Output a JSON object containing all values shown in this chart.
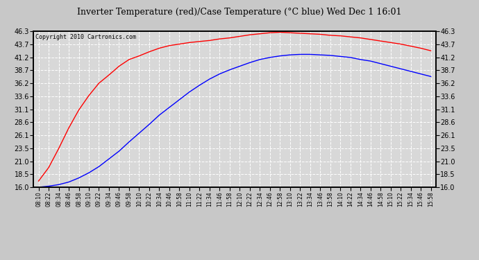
{
  "title": "Inverter Temperature (red)/Case Temperature (°C blue) Wed Dec 1 16:01",
  "copyright": "Copyright 2010 Cartronics.com",
  "yticks": [
    16.0,
    18.5,
    21.0,
    23.5,
    26.1,
    28.6,
    31.1,
    33.6,
    36.2,
    38.7,
    41.2,
    43.7,
    46.3
  ],
  "ymin": 16.0,
  "ymax": 46.3,
  "background_color": "#c8c8c8",
  "plot_bg_color": "#d8d8d8",
  "grid_color": "#ffffff",
  "red_color": "#ff0000",
  "blue_color": "#0000ff",
  "xtick_labels": [
    "08:10",
    "08:22",
    "08:34",
    "08:46",
    "08:58",
    "09:10",
    "09:22",
    "09:34",
    "09:46",
    "09:58",
    "10:10",
    "10:22",
    "10:34",
    "10:46",
    "10:58",
    "11:10",
    "11:22",
    "11:34",
    "11:46",
    "11:58",
    "12:10",
    "12:22",
    "12:34",
    "12:46",
    "12:58",
    "13:10",
    "13:22",
    "13:34",
    "13:46",
    "13:58",
    "14:10",
    "14:22",
    "14:34",
    "14:46",
    "14:58",
    "15:10",
    "15:22",
    "15:34",
    "15:46",
    "15:58"
  ],
  "red_data": [
    17.2,
    19.8,
    23.5,
    27.5,
    31.0,
    33.8,
    36.2,
    37.8,
    39.5,
    40.8,
    41.5,
    42.3,
    43.0,
    43.5,
    43.8,
    44.1,
    44.3,
    44.5,
    44.8,
    45.0,
    45.3,
    45.6,
    45.8,
    46.0,
    46.1,
    46.0,
    45.9,
    45.8,
    45.7,
    45.5,
    45.4,
    45.2,
    45.0,
    44.7,
    44.4,
    44.1,
    43.8,
    43.4,
    43.0,
    42.5
  ],
  "blue_data": [
    16.0,
    16.2,
    16.5,
    17.0,
    17.8,
    18.8,
    20.0,
    21.5,
    23.0,
    24.8,
    26.5,
    28.2,
    30.0,
    31.5,
    33.0,
    34.5,
    35.8,
    37.0,
    38.0,
    38.8,
    39.5,
    40.2,
    40.8,
    41.2,
    41.5,
    41.7,
    41.8,
    41.8,
    41.7,
    41.6,
    41.4,
    41.2,
    40.8,
    40.5,
    40.0,
    39.5,
    39.0,
    38.5,
    38.0,
    37.5
  ]
}
